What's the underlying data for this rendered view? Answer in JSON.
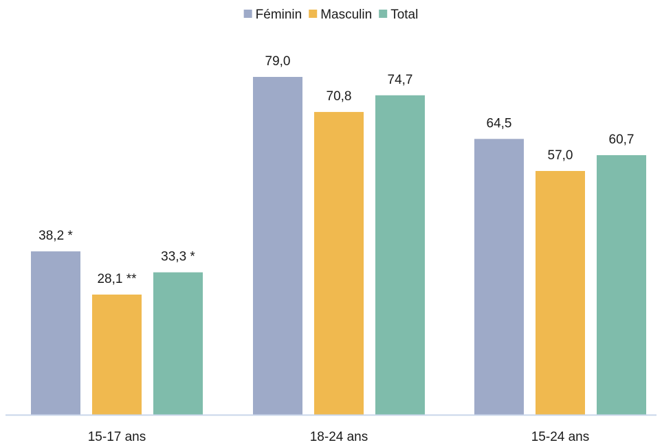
{
  "chart_data": {
    "type": "bar",
    "title": "",
    "xlabel": "",
    "ylabel": "",
    "categories": [
      "15-17 ans",
      "18-24 ans",
      "15-24 ans"
    ],
    "series": [
      {
        "name": "Féminin",
        "color": "#9eaac8",
        "values": [
          38.2,
          79.0,
          64.5
        ],
        "labels": [
          "38,2 *",
          "79,0",
          "64,5"
        ]
      },
      {
        "name": "Masculin",
        "color": "#f0b94f",
        "values": [
          28.1,
          70.8,
          57.0
        ],
        "labels": [
          "28,1 **",
          "70,8",
          "57,0"
        ]
      },
      {
        "name": "Total",
        "color": "#7fbcab",
        "values": [
          33.3,
          74.7,
          60.7
        ],
        "labels": [
          "33,3 *",
          "74,7",
          "60,7"
        ]
      }
    ],
    "ylim": [
      0,
      79.0
    ],
    "grid": false,
    "legend_position": "top-center",
    "axis_color": "#c9d6ea"
  }
}
